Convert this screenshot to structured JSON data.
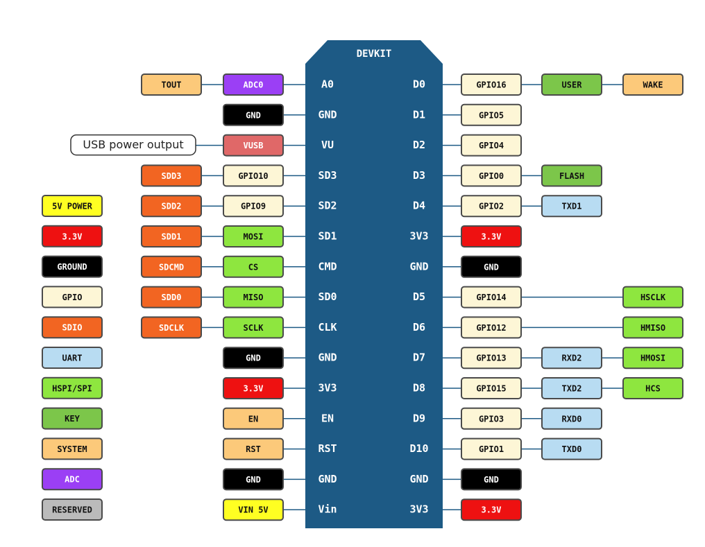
{
  "board": {
    "title": "DEVKIT"
  },
  "rows": [
    {
      "left_pin": "A0",
      "right_pin": "D0",
      "left": [
        {
          "label": "ADC0",
          "color": "#9b3ff5"
        },
        {
          "label": "TOUT",
          "color": "#fcc97a"
        }
      ],
      "right": [
        {
          "label": "GPIO16",
          "color": "#fdf6d6"
        },
        {
          "label": "USER",
          "color": "#7cc64a"
        },
        {
          "label": "WAKE",
          "color": "#fcc97a"
        }
      ]
    },
    {
      "left_pin": "GND",
      "right_pin": "D1",
      "left": [
        {
          "label": "GND",
          "color": "#000000"
        }
      ],
      "right": [
        {
          "label": "GPIO5",
          "color": "#fdf6d6"
        }
      ]
    },
    {
      "left_pin": "VU",
      "right_pin": "D2",
      "left": [
        {
          "label": "VUSB",
          "color": "#e06868"
        }
      ],
      "callout": "USB power output",
      "right": [
        {
          "label": "GPIO4",
          "color": "#fdf6d6"
        }
      ]
    },
    {
      "left_pin": "SD3",
      "right_pin": "D3",
      "left": [
        {
          "label": "GPIO10",
          "color": "#fdf6d6"
        },
        {
          "label": "SDD3",
          "color": "#f26522"
        }
      ],
      "right": [
        {
          "label": "GPIO0",
          "color": "#fdf6d6"
        },
        {
          "label": "FLASH",
          "color": "#7cc64a"
        }
      ]
    },
    {
      "left_pin": "SD2",
      "right_pin": "D4",
      "left": [
        {
          "label": "GPIO9",
          "color": "#fdf6d6"
        },
        {
          "label": "SDD2",
          "color": "#f26522"
        }
      ],
      "right": [
        {
          "label": "GPIO2",
          "color": "#fdf6d6"
        },
        {
          "label": "TXD1",
          "color": "#b8dcf2"
        }
      ]
    },
    {
      "left_pin": "SD1",
      "right_pin": "3V3",
      "left": [
        {
          "label": "MOSI",
          "color": "#8ee63f"
        },
        {
          "label": "SDD1",
          "color": "#f26522"
        }
      ],
      "right": [
        {
          "label": "3.3V",
          "color": "#ee1111"
        }
      ]
    },
    {
      "left_pin": "CMD",
      "right_pin": "GND",
      "left": [
        {
          "label": "CS",
          "color": "#8ee63f"
        },
        {
          "label": "SDCMD",
          "color": "#f26522"
        }
      ],
      "right": [
        {
          "label": "GND",
          "color": "#000000"
        }
      ]
    },
    {
      "left_pin": "SD0",
      "right_pin": "D5",
      "left": [
        {
          "label": "MISO",
          "color": "#8ee63f"
        },
        {
          "label": "SDD0",
          "color": "#f26522"
        }
      ],
      "right": [
        {
          "label": "GPIO14",
          "color": "#fdf6d6"
        },
        null,
        {
          "label": "HSCLK",
          "color": "#8ee63f"
        }
      ]
    },
    {
      "left_pin": "CLK",
      "right_pin": "D6",
      "left": [
        {
          "label": "SCLK",
          "color": "#8ee63f"
        },
        {
          "label": "SDCLK",
          "color": "#f26522"
        }
      ],
      "right": [
        {
          "label": "GPIO12",
          "color": "#fdf6d6"
        },
        null,
        {
          "label": "HMISO",
          "color": "#8ee63f"
        }
      ]
    },
    {
      "left_pin": "GND",
      "right_pin": "D7",
      "left": [
        {
          "label": "GND",
          "color": "#000000"
        }
      ],
      "right": [
        {
          "label": "GPIO13",
          "color": "#fdf6d6"
        },
        {
          "label": "RXD2",
          "color": "#b8dcf2"
        },
        {
          "label": "HMOSI",
          "color": "#8ee63f"
        }
      ]
    },
    {
      "left_pin": "3V3",
      "right_pin": "D8",
      "left": [
        {
          "label": "3.3V",
          "color": "#ee1111"
        }
      ],
      "right": [
        {
          "label": "GPIO15",
          "color": "#fdf6d6"
        },
        {
          "label": "TXD2",
          "color": "#b8dcf2"
        },
        {
          "label": "HCS",
          "color": "#8ee63f"
        }
      ]
    },
    {
      "left_pin": "EN",
      "right_pin": "D9",
      "left": [
        {
          "label": "EN",
          "color": "#fcc97a"
        }
      ],
      "right": [
        {
          "label": "GPIO3",
          "color": "#fdf6d6"
        },
        {
          "label": "RXD0",
          "color": "#b8dcf2"
        }
      ]
    },
    {
      "left_pin": "RST",
      "right_pin": "D10",
      "left": [
        {
          "label": "RST",
          "color": "#fcc97a"
        }
      ],
      "right": [
        {
          "label": "GPIO1",
          "color": "#fdf6d6"
        },
        {
          "label": "TXD0",
          "color": "#b8dcf2"
        }
      ]
    },
    {
      "left_pin": "GND",
      "right_pin": "GND",
      "left": [
        {
          "label": "GND",
          "color": "#000000"
        }
      ],
      "right": [
        {
          "label": "GND",
          "color": "#000000"
        }
      ]
    },
    {
      "left_pin": "Vin",
      "right_pin": "3V3",
      "left": [
        {
          "label": "VIN 5V",
          "color": "#ffff22"
        }
      ],
      "right": [
        {
          "label": "3.3V",
          "color": "#ee1111"
        }
      ]
    }
  ],
  "legend": [
    {
      "label": "5V POWER",
      "color": "#ffff22"
    },
    {
      "label": "3.3V",
      "color": "#ee1111"
    },
    {
      "label": "GROUND",
      "color": "#000000"
    },
    {
      "label": "GPIO",
      "color": "#fdf6d6"
    },
    {
      "label": "SDIO",
      "color": "#f26522"
    },
    {
      "label": "UART",
      "color": "#b8dcf2"
    },
    {
      "label": "HSPI/SPI",
      "color": "#8ee63f"
    },
    {
      "label": "KEY",
      "color": "#7cc64a"
    },
    {
      "label": "SYSTEM",
      "color": "#fcc97a"
    },
    {
      "label": "ADC",
      "color": "#9b3ff5"
    },
    {
      "label": "RESERVED",
      "color": "#bbbbbb"
    }
  ]
}
